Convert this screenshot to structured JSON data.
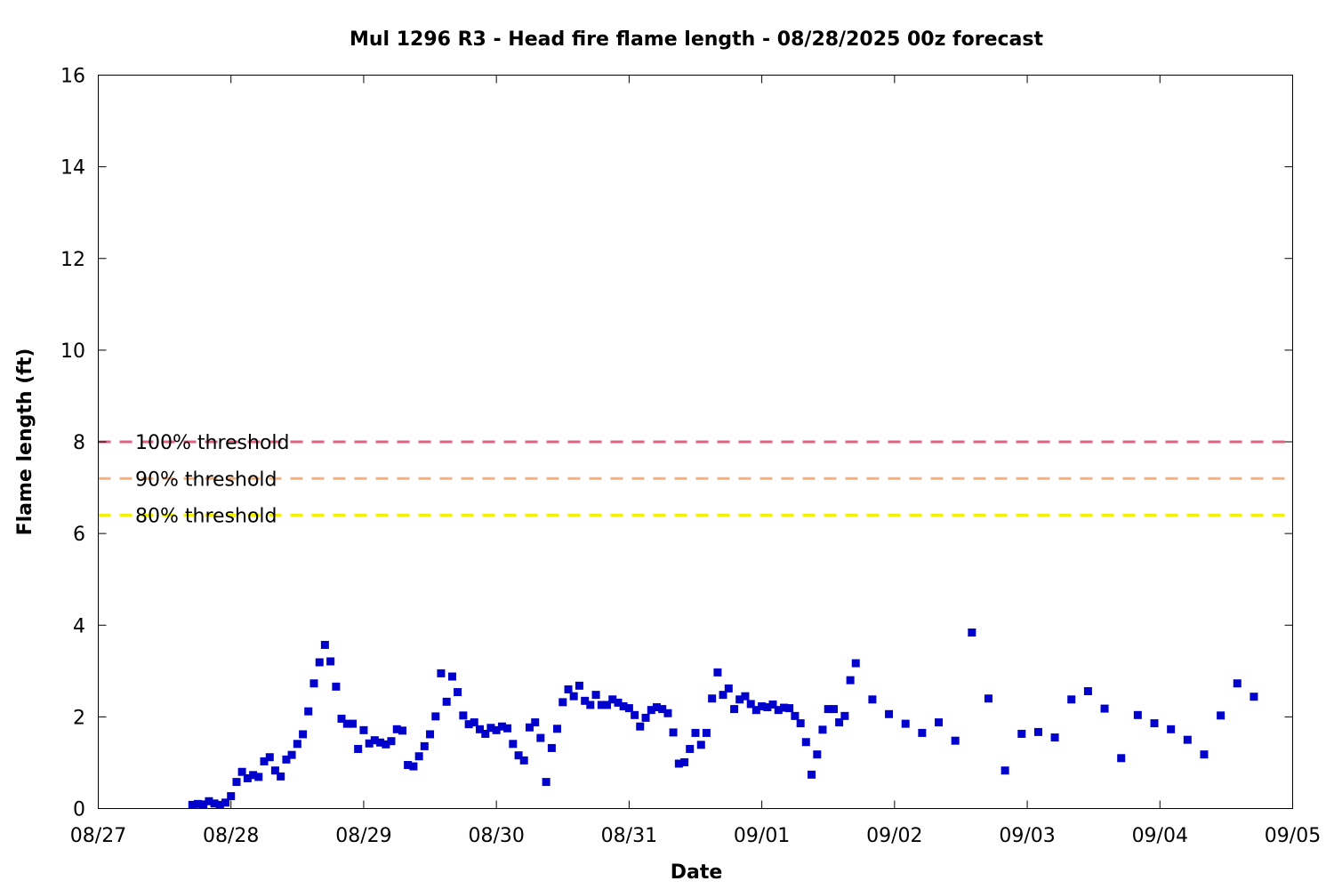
{
  "chart_data": {
    "type": "scatter",
    "title": "Mul 1296 R3 - Head fire flame length - 08/28/2025 00z forecast",
    "xlabel": "Date",
    "ylabel": "Flame length (ft)",
    "x_units": "days",
    "xlim": [
      0,
      9
    ],
    "ylim": [
      0,
      16
    ],
    "x_ticks": [
      {
        "v": 0,
        "label": "08/27"
      },
      {
        "v": 1,
        "label": "08/28"
      },
      {
        "v": 2,
        "label": "08/29"
      },
      {
        "v": 3,
        "label": "08/30"
      },
      {
        "v": 4,
        "label": "08/31"
      },
      {
        "v": 5,
        "label": "09/01"
      },
      {
        "v": 6,
        "label": "09/02"
      },
      {
        "v": 7,
        "label": "09/03"
      },
      {
        "v": 8,
        "label": "09/04"
      },
      {
        "v": 9,
        "label": "09/05"
      }
    ],
    "y_ticks": [
      {
        "v": 0,
        "label": "0"
      },
      {
        "v": 2,
        "label": "2"
      },
      {
        "v": 4,
        "label": "4"
      },
      {
        "v": 6,
        "label": "6"
      },
      {
        "v": 8,
        "label": "8"
      },
      {
        "v": 10,
        "label": "10"
      },
      {
        "v": 12,
        "label": "12"
      },
      {
        "v": 14,
        "label": "14"
      },
      {
        "v": 16,
        "label": "16"
      }
    ],
    "grid": false,
    "thresholds": [
      {
        "label": "100% threshold",
        "value": 8.0,
        "color": "#e0607e"
      },
      {
        "label": "90% threshold",
        "value": 7.2,
        "color": "#f5b07a"
      },
      {
        "label": "80% threshold",
        "value": 6.4,
        "color": "#f0f000"
      }
    ],
    "series": [
      {
        "marker": "square",
        "color": "#0000cc",
        "points": [
          [
            0.709,
            0.08
          ],
          [
            0.75,
            0.1
          ],
          [
            0.792,
            0.09
          ],
          [
            0.834,
            0.16
          ],
          [
            0.875,
            0.11
          ],
          [
            0.917,
            0.08
          ],
          [
            0.959,
            0.13
          ],
          [
            1.0,
            0.27
          ],
          [
            1.042,
            0.58
          ],
          [
            1.083,
            0.8
          ],
          [
            1.125,
            0.66
          ],
          [
            1.167,
            0.73
          ],
          [
            1.208,
            0.69
          ],
          [
            1.25,
            1.03
          ],
          [
            1.292,
            1.12
          ],
          [
            1.333,
            0.83
          ],
          [
            1.375,
            0.7
          ],
          [
            1.417,
            1.07
          ],
          [
            1.458,
            1.17
          ],
          [
            1.5,
            1.41
          ],
          [
            1.542,
            1.62
          ],
          [
            1.583,
            2.12
          ],
          [
            1.625,
            2.73
          ],
          [
            1.667,
            3.19
          ],
          [
            1.708,
            3.57
          ],
          [
            1.75,
            3.21
          ],
          [
            1.792,
            2.66
          ],
          [
            1.833,
            1.96
          ],
          [
            1.875,
            1.85
          ],
          [
            1.917,
            1.85
          ],
          [
            1.958,
            1.3
          ],
          [
            2.0,
            1.71
          ],
          [
            2.042,
            1.42
          ],
          [
            2.083,
            1.49
          ],
          [
            2.125,
            1.44
          ],
          [
            2.167,
            1.4
          ],
          [
            2.208,
            1.47
          ],
          [
            2.25,
            1.73
          ],
          [
            2.292,
            1.7
          ],
          [
            2.333,
            0.95
          ],
          [
            2.375,
            0.92
          ],
          [
            2.417,
            1.14
          ],
          [
            2.458,
            1.36
          ],
          [
            2.5,
            1.62
          ],
          [
            2.542,
            2.01
          ],
          [
            2.583,
            2.95
          ],
          [
            2.625,
            2.33
          ],
          [
            2.667,
            2.88
          ],
          [
            2.708,
            2.54
          ],
          [
            2.75,
            2.03
          ],
          [
            2.792,
            1.84
          ],
          [
            2.833,
            1.88
          ],
          [
            2.875,
            1.73
          ],
          [
            2.917,
            1.63
          ],
          [
            2.958,
            1.76
          ],
          [
            3.0,
            1.71
          ],
          [
            3.042,
            1.79
          ],
          [
            3.083,
            1.75
          ],
          [
            3.125,
            1.41
          ],
          [
            3.167,
            1.16
          ],
          [
            3.208,
            1.05
          ],
          [
            3.25,
            1.77
          ],
          [
            3.292,
            1.88
          ],
          [
            3.333,
            1.54
          ],
          [
            3.375,
            0.58
          ],
          [
            3.417,
            1.32
          ],
          [
            3.458,
            1.74
          ],
          [
            3.5,
            2.32
          ],
          [
            3.542,
            2.6
          ],
          [
            3.583,
            2.45
          ],
          [
            3.625,
            2.68
          ],
          [
            3.667,
            2.35
          ],
          [
            3.708,
            2.26
          ],
          [
            3.75,
            2.48
          ],
          [
            3.792,
            2.26
          ],
          [
            3.833,
            2.26
          ],
          [
            3.875,
            2.38
          ],
          [
            3.917,
            2.31
          ],
          [
            3.958,
            2.23
          ],
          [
            4.0,
            2.19
          ],
          [
            4.042,
            2.04
          ],
          [
            4.083,
            1.79
          ],
          [
            4.125,
            1.98
          ],
          [
            4.167,
            2.15
          ],
          [
            4.208,
            2.21
          ],
          [
            4.25,
            2.17
          ],
          [
            4.292,
            2.08
          ],
          [
            4.333,
            1.66
          ],
          [
            4.375,
            0.98
          ],
          [
            4.417,
            1.01
          ],
          [
            4.458,
            1.3
          ],
          [
            4.5,
            1.65
          ],
          [
            4.542,
            1.39
          ],
          [
            4.583,
            1.65
          ],
          [
            4.625,
            2.4
          ],
          [
            4.667,
            2.97
          ],
          [
            4.708,
            2.48
          ],
          [
            4.75,
            2.62
          ],
          [
            4.792,
            2.17
          ],
          [
            4.833,
            2.38
          ],
          [
            4.875,
            2.45
          ],
          [
            4.917,
            2.28
          ],
          [
            4.958,
            2.15
          ],
          [
            5.0,
            2.23
          ],
          [
            5.042,
            2.21
          ],
          [
            5.083,
            2.27
          ],
          [
            5.125,
            2.15
          ],
          [
            5.167,
            2.2
          ],
          [
            5.208,
            2.19
          ],
          [
            5.25,
            2.02
          ],
          [
            5.292,
            1.86
          ],
          [
            5.333,
            1.45
          ],
          [
            5.375,
            0.74
          ],
          [
            5.417,
            1.18
          ],
          [
            5.458,
            1.72
          ],
          [
            5.5,
            2.17
          ],
          [
            5.542,
            2.17
          ],
          [
            5.583,
            1.88
          ],
          [
            5.625,
            2.02
          ],
          [
            5.667,
            2.8
          ],
          [
            5.708,
            3.17
          ],
          [
            5.833,
            2.38
          ],
          [
            5.958,
            2.06
          ],
          [
            6.083,
            1.85
          ],
          [
            6.208,
            1.65
          ],
          [
            6.333,
            1.88
          ],
          [
            6.458,
            1.48
          ],
          [
            6.583,
            3.84
          ],
          [
            6.708,
            2.4
          ],
          [
            6.833,
            0.83
          ],
          [
            6.958,
            1.63
          ],
          [
            7.083,
            1.67
          ],
          [
            7.208,
            1.55
          ],
          [
            7.333,
            2.38
          ],
          [
            7.458,
            2.56
          ],
          [
            7.583,
            2.18
          ],
          [
            7.708,
            1.1
          ],
          [
            7.833,
            2.04
          ],
          [
            7.958,
            1.86
          ],
          [
            8.083,
            1.73
          ],
          [
            8.208,
            1.5
          ],
          [
            8.333,
            1.18
          ],
          [
            8.458,
            2.03
          ],
          [
            8.583,
            2.73
          ],
          [
            8.708,
            2.44
          ]
        ]
      }
    ]
  }
}
